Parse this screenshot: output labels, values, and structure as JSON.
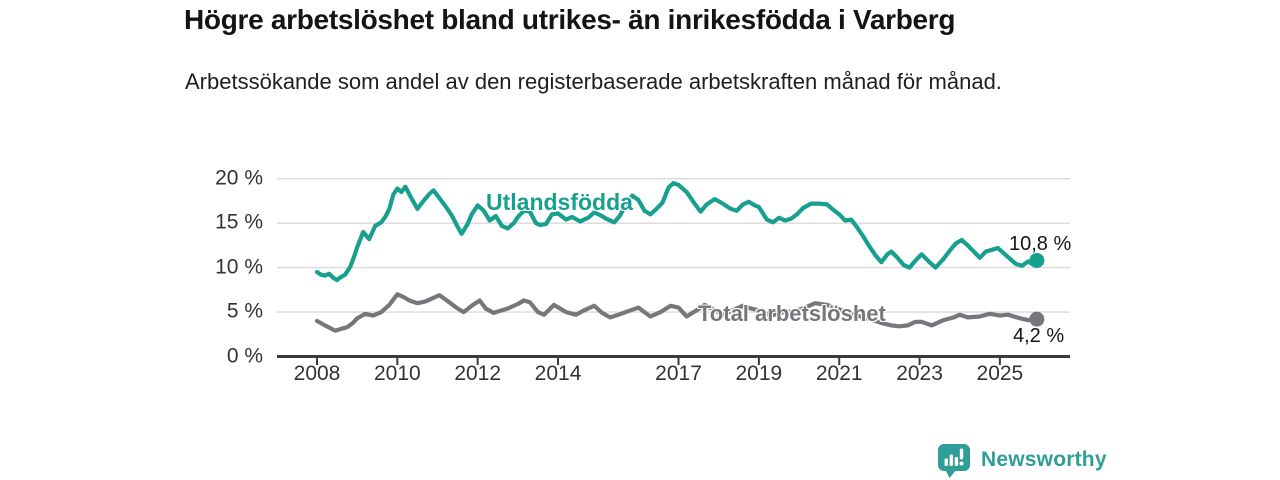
{
  "header": {
    "title": "Högre arbetslöshet bland utrikes- än inrikesfödda i Varberg",
    "subtitle": "Arbetssökande som andel av den registerbaserade arbetskraften månad för månad."
  },
  "colors": {
    "accent_teal": "#18a08f",
    "series_gray": "#77777b",
    "grid": "#dadada",
    "axis": "#3a3a3a",
    "text_dark": "#141414",
    "tick_text": "#333333",
    "brand_teal": "#2f9e96"
  },
  "chart_data": {
    "type": "line",
    "title": "Högre arbetslöshet bland utrikes- än inrikesfödda i Varberg",
    "subtitle": "Arbetssökande som andel av den registerbaserade arbetskraften månad för månad.",
    "xlabel": "",
    "ylabel": "",
    "ylim": [
      0,
      20
    ],
    "xlim": [
      2007.5,
      2026.3
    ],
    "grid": true,
    "legend_position": "inline-labels",
    "yticks": [
      {
        "value": 0,
        "label": "0 %"
      },
      {
        "value": 5,
        "label": "5 %"
      },
      {
        "value": 10,
        "label": "10 %"
      },
      {
        "value": 15,
        "label": "15 %"
      },
      {
        "value": 20,
        "label": "20 %"
      }
    ],
    "xticks": [
      {
        "value": 2008,
        "label": "2008"
      },
      {
        "value": 2010,
        "label": "2010"
      },
      {
        "value": 2012,
        "label": "2012"
      },
      {
        "value": 2014,
        "label": "2014"
      },
      {
        "value": 2017,
        "label": "2017"
      },
      {
        "value": 2019,
        "label": "2019"
      },
      {
        "value": 2021,
        "label": "2021"
      },
      {
        "value": 2023,
        "label": "2023"
      },
      {
        "value": 2025,
        "label": "2025"
      }
    ],
    "series": [
      {
        "name": "Utlandsfödda",
        "color": "#18a08f",
        "end_label": "10,8 %",
        "final_value": 10.8,
        "points": [
          [
            2008.0,
            9.5
          ],
          [
            2008.1,
            9.2
          ],
          [
            2008.2,
            9.1
          ],
          [
            2008.3,
            9.3
          ],
          [
            2008.42,
            8.8
          ],
          [
            2008.5,
            8.6
          ],
          [
            2008.58,
            8.9
          ],
          [
            2008.7,
            9.2
          ],
          [
            2008.83,
            10.1
          ],
          [
            2008.92,
            11.2
          ],
          [
            2009.0,
            12.3
          ],
          [
            2009.15,
            14.0
          ],
          [
            2009.3,
            13.2
          ],
          [
            2009.45,
            14.7
          ],
          [
            2009.6,
            15.1
          ],
          [
            2009.7,
            15.7
          ],
          [
            2009.8,
            16.6
          ],
          [
            2009.9,
            18.2
          ],
          [
            2010.0,
            18.9
          ],
          [
            2010.1,
            18.5
          ],
          [
            2010.2,
            19.1
          ],
          [
            2010.35,
            17.8
          ],
          [
            2010.5,
            16.6
          ],
          [
            2010.65,
            17.5
          ],
          [
            2010.8,
            18.3
          ],
          [
            2010.9,
            18.7
          ],
          [
            2011.05,
            17.8
          ],
          [
            2011.2,
            16.9
          ],
          [
            2011.35,
            15.9
          ],
          [
            2011.5,
            14.6
          ],
          [
            2011.6,
            13.8
          ],
          [
            2011.75,
            14.9
          ],
          [
            2011.85,
            16.0
          ],
          [
            2012.0,
            17.0
          ],
          [
            2012.15,
            16.4
          ],
          [
            2012.3,
            15.3
          ],
          [
            2012.45,
            15.8
          ],
          [
            2012.6,
            14.7
          ],
          [
            2012.75,
            14.4
          ],
          [
            2012.9,
            15.0
          ],
          [
            2013.0,
            15.7
          ],
          [
            2013.15,
            16.4
          ],
          [
            2013.3,
            16.3
          ],
          [
            2013.45,
            15.0
          ],
          [
            2013.55,
            14.8
          ],
          [
            2013.7,
            14.9
          ],
          [
            2013.85,
            16.0
          ],
          [
            2014.0,
            16.1
          ],
          [
            2014.2,
            15.4
          ],
          [
            2014.35,
            15.7
          ],
          [
            2014.55,
            15.2
          ],
          [
            2014.75,
            15.6
          ],
          [
            2014.9,
            16.2
          ],
          [
            2015.05,
            15.9
          ],
          [
            2015.2,
            15.5
          ],
          [
            2015.4,
            15.1
          ],
          [
            2015.55,
            15.9
          ],
          [
            2015.7,
            17.2
          ],
          [
            2015.85,
            18.1
          ],
          [
            2016.0,
            17.6
          ],
          [
            2016.15,
            16.4
          ],
          [
            2016.3,
            16.0
          ],
          [
            2016.45,
            16.6
          ],
          [
            2016.6,
            17.3
          ],
          [
            2016.75,
            19.0
          ],
          [
            2016.87,
            19.5
          ],
          [
            2017.0,
            19.3
          ],
          [
            2017.2,
            18.5
          ],
          [
            2017.4,
            17.2
          ],
          [
            2017.55,
            16.3
          ],
          [
            2017.7,
            17.1
          ],
          [
            2017.9,
            17.7
          ],
          [
            2018.1,
            17.2
          ],
          [
            2018.3,
            16.6
          ],
          [
            2018.45,
            16.4
          ],
          [
            2018.6,
            17.1
          ],
          [
            2018.75,
            17.4
          ],
          [
            2018.9,
            17.0
          ],
          [
            2019.0,
            16.8
          ],
          [
            2019.2,
            15.4
          ],
          [
            2019.35,
            15.1
          ],
          [
            2019.5,
            15.6
          ],
          [
            2019.65,
            15.3
          ],
          [
            2019.8,
            15.5
          ],
          [
            2019.95,
            16.0
          ],
          [
            2020.1,
            16.7
          ],
          [
            2020.3,
            17.2
          ],
          [
            2020.5,
            17.2
          ],
          [
            2020.7,
            17.1
          ],
          [
            2020.85,
            16.5
          ],
          [
            2021.0,
            16.0
          ],
          [
            2021.15,
            15.3
          ],
          [
            2021.3,
            15.4
          ],
          [
            2021.45,
            14.5
          ],
          [
            2021.6,
            13.5
          ],
          [
            2021.75,
            12.4
          ],
          [
            2021.9,
            11.4
          ],
          [
            2022.05,
            10.6
          ],
          [
            2022.2,
            11.5
          ],
          [
            2022.3,
            11.8
          ],
          [
            2022.45,
            11.1
          ],
          [
            2022.6,
            10.3
          ],
          [
            2022.75,
            10.0
          ],
          [
            2022.9,
            10.8
          ],
          [
            2023.05,
            11.5
          ],
          [
            2023.25,
            10.6
          ],
          [
            2023.4,
            10.0
          ],
          [
            2023.6,
            11.0
          ],
          [
            2023.75,
            11.9
          ],
          [
            2023.9,
            12.7
          ],
          [
            2024.05,
            13.1
          ],
          [
            2024.2,
            12.5
          ],
          [
            2024.35,
            11.8
          ],
          [
            2024.5,
            11.1
          ],
          [
            2024.65,
            11.8
          ],
          [
            2024.8,
            12.0
          ],
          [
            2024.95,
            12.2
          ],
          [
            2025.1,
            11.6
          ],
          [
            2025.25,
            11.0
          ],
          [
            2025.4,
            10.4
          ],
          [
            2025.55,
            10.2
          ],
          [
            2025.7,
            10.7
          ],
          [
            2025.8,
            10.4
          ],
          [
            2025.92,
            10.8
          ]
        ]
      },
      {
        "name": "Total arbetslöshet",
        "color": "#77777b",
        "end_label": "4,2 %",
        "final_value": 4.2,
        "points": [
          [
            2008.0,
            4.0
          ],
          [
            2008.2,
            3.5
          ],
          [
            2008.45,
            2.9
          ],
          [
            2008.6,
            3.1
          ],
          [
            2008.75,
            3.3
          ],
          [
            2008.9,
            3.8
          ],
          [
            2009.0,
            4.3
          ],
          [
            2009.2,
            4.8
          ],
          [
            2009.4,
            4.6
          ],
          [
            2009.6,
            5.0
          ],
          [
            2009.8,
            5.8
          ],
          [
            2010.0,
            7.0
          ],
          [
            2010.15,
            6.7
          ],
          [
            2010.3,
            6.3
          ],
          [
            2010.5,
            6.0
          ],
          [
            2010.7,
            6.2
          ],
          [
            2010.9,
            6.6
          ],
          [
            2011.05,
            6.9
          ],
          [
            2011.2,
            6.4
          ],
          [
            2011.35,
            5.9
          ],
          [
            2011.5,
            5.4
          ],
          [
            2011.65,
            5.0
          ],
          [
            2011.85,
            5.7
          ],
          [
            2012.05,
            6.3
          ],
          [
            2012.2,
            5.4
          ],
          [
            2012.4,
            4.9
          ],
          [
            2012.6,
            5.2
          ],
          [
            2012.75,
            5.4
          ],
          [
            2013.0,
            5.9
          ],
          [
            2013.15,
            6.3
          ],
          [
            2013.3,
            6.1
          ],
          [
            2013.5,
            5.0
          ],
          [
            2013.65,
            4.7
          ],
          [
            2013.9,
            5.8
          ],
          [
            2014.2,
            5.0
          ],
          [
            2014.45,
            4.7
          ],
          [
            2014.65,
            5.2
          ],
          [
            2014.9,
            5.7
          ],
          [
            2015.1,
            4.9
          ],
          [
            2015.3,
            4.4
          ],
          [
            2015.5,
            4.7
          ],
          [
            2015.75,
            5.1
          ],
          [
            2016.0,
            5.5
          ],
          [
            2016.3,
            4.5
          ],
          [
            2016.55,
            5.0
          ],
          [
            2016.8,
            5.7
          ],
          [
            2017.0,
            5.5
          ],
          [
            2017.2,
            4.5
          ],
          [
            2017.45,
            5.2
          ],
          [
            2017.65,
            5.8
          ],
          [
            2017.9,
            5.2
          ],
          [
            2018.1,
            4.7
          ],
          [
            2018.35,
            5.2
          ],
          [
            2018.6,
            5.7
          ],
          [
            2018.8,
            5.4
          ],
          [
            2019.0,
            5.2
          ],
          [
            2019.3,
            4.6
          ],
          [
            2019.6,
            5.0
          ],
          [
            2019.9,
            5.1
          ],
          [
            2020.2,
            5.6
          ],
          [
            2020.4,
            6.0
          ],
          [
            2020.7,
            5.8
          ],
          [
            2021.0,
            5.3
          ],
          [
            2021.3,
            4.8
          ],
          [
            2021.6,
            4.4
          ],
          [
            2021.9,
            4.0
          ],
          [
            2022.1,
            3.7
          ],
          [
            2022.3,
            3.5
          ],
          [
            2022.5,
            3.4
          ],
          [
            2022.7,
            3.5
          ],
          [
            2022.9,
            3.9
          ],
          [
            2023.05,
            3.9
          ],
          [
            2023.3,
            3.5
          ],
          [
            2023.6,
            4.1
          ],
          [
            2023.85,
            4.4
          ],
          [
            2024.0,
            4.7
          ],
          [
            2024.2,
            4.4
          ],
          [
            2024.5,
            4.5
          ],
          [
            2024.75,
            4.8
          ],
          [
            2025.0,
            4.6
          ],
          [
            2025.2,
            4.7
          ],
          [
            2025.5,
            4.3
          ],
          [
            2025.7,
            4.1
          ],
          [
            2025.92,
            4.2
          ]
        ]
      }
    ]
  },
  "branding": {
    "name": "Newsworthy",
    "icon": "bar-chart-speech-bubble-icon"
  }
}
